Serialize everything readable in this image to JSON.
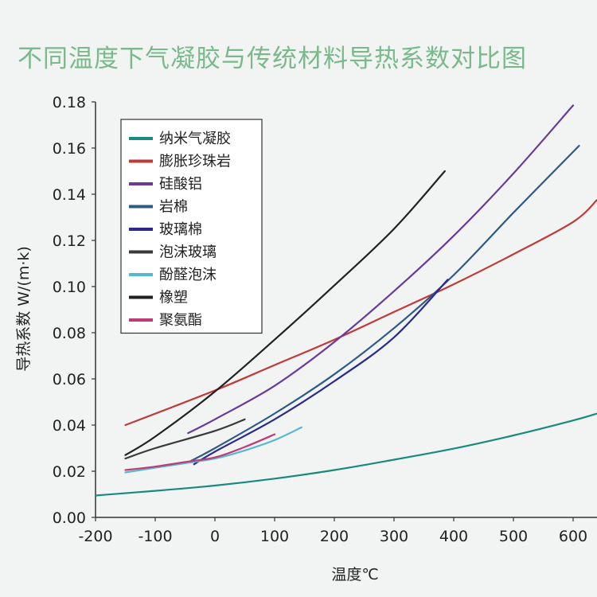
{
  "chart_data": {
    "type": "line",
    "title": "不同温度下气凝胶与传统材料导热系数对比图",
    "xlabel": "温度℃",
    "ylabel": "导热系数 W/(m·k)",
    "xlim": [
      -200,
      640
    ],
    "ylim": [
      0,
      0.18
    ],
    "x_ticks": [
      "-200",
      "-100",
      "0",
      "100",
      "200",
      "300",
      "400",
      "500",
      "600"
    ],
    "y_ticks": [
      "0.00",
      "0.02",
      "0.04",
      "0.06",
      "0.08",
      "0.10",
      "0.12",
      "0.14",
      "0.16",
      "0.18"
    ],
    "legend_position": "top-left",
    "series": [
      {
        "name": "纳米气凝胶",
        "color": "#1a8a7e",
        "points": [
          [
            -200,
            0.0095
          ],
          [
            -100,
            0.0115
          ],
          [
            0,
            0.0138
          ],
          [
            100,
            0.0168
          ],
          [
            200,
            0.0205
          ],
          [
            300,
            0.025
          ],
          [
            400,
            0.0298
          ],
          [
            500,
            0.0355
          ],
          [
            600,
            0.042
          ],
          [
            640,
            0.045
          ]
        ]
      },
      {
        "name": "膨胀珍珠岩",
        "color": "#c23a38",
        "points": [
          [
            -150,
            0.04
          ],
          [
            0,
            0.055
          ],
          [
            100,
            0.066
          ],
          [
            200,
            0.077
          ],
          [
            300,
            0.089
          ],
          [
            400,
            0.101
          ],
          [
            500,
            0.114
          ],
          [
            600,
            0.128
          ],
          [
            640,
            0.1375
          ]
        ]
      },
      {
        "name": "硅酸铝",
        "color": "#6a3a9a",
        "points": [
          [
            -45,
            0.0365
          ],
          [
            0,
            0.0425
          ],
          [
            100,
            0.057
          ],
          [
            200,
            0.076
          ],
          [
            300,
            0.098
          ],
          [
            400,
            0.122
          ],
          [
            500,
            0.149
          ],
          [
            600,
            0.1785
          ]
        ]
      },
      {
        "name": "岩棉",
        "color": "#2e5a88",
        "points": [
          [
            -40,
            0.0245
          ],
          [
            0,
            0.03
          ],
          [
            100,
            0.045
          ],
          [
            200,
            0.062
          ],
          [
            300,
            0.082
          ],
          [
            400,
            0.105
          ],
          [
            500,
            0.132
          ],
          [
            610,
            0.161
          ]
        ]
      },
      {
        "name": "玻璃棉",
        "color": "#2a2a8c",
        "points": [
          [
            -35,
            0.023
          ],
          [
            0,
            0.0285
          ],
          [
            100,
            0.0425
          ],
          [
            200,
            0.059
          ],
          [
            300,
            0.078
          ],
          [
            390,
            0.103
          ]
        ]
      },
      {
        "name": "泡沫玻璃",
        "color": "#3a3a3a",
        "points": [
          [
            -150,
            0.0255
          ],
          [
            -100,
            0.03
          ],
          [
            0,
            0.0375
          ],
          [
            50,
            0.0425
          ]
        ]
      },
      {
        "name": "酚醛泡沫",
        "color": "#56b8cc",
        "points": [
          [
            -150,
            0.0195
          ],
          [
            -100,
            0.0215
          ],
          [
            -50,
            0.0235
          ],
          [
            0,
            0.0255
          ],
          [
            50,
            0.029
          ],
          [
            100,
            0.0335
          ],
          [
            145,
            0.039
          ]
        ]
      },
      {
        "name": "橡塑",
        "color": "#222222",
        "points": [
          [
            -150,
            0.027
          ],
          [
            -100,
            0.035
          ],
          [
            0,
            0.0545
          ],
          [
            100,
            0.077
          ],
          [
            200,
            0.1005
          ],
          [
            300,
            0.125
          ],
          [
            385,
            0.15
          ]
        ]
      },
      {
        "name": "聚氨酯",
        "color": "#c03a78",
        "points": [
          [
            -150,
            0.0205
          ],
          [
            -100,
            0.022
          ],
          [
            -50,
            0.024
          ],
          [
            0,
            0.026
          ],
          [
            50,
            0.0305
          ],
          [
            100,
            0.036
          ]
        ]
      }
    ]
  }
}
